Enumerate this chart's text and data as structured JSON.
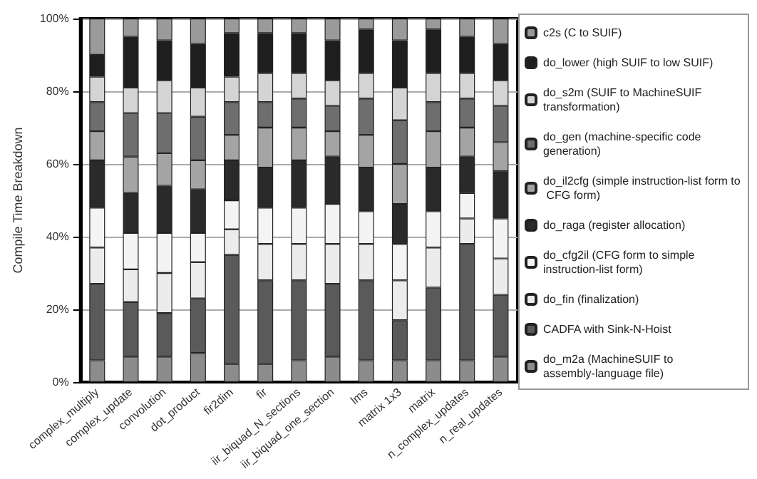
{
  "chart_data": {
    "type": "bar",
    "stacked": true,
    "ylabel": "Compile Time Breakdown",
    "categories": [
      "complex_multiply",
      "complex_update",
      "convolution",
      "dot_product",
      "fir2dim",
      "fir",
      "iir_biquad_N_sections",
      "iir_biquad_one_section",
      "lms",
      "matrix 1x3",
      "matrix",
      "n_complex_updates",
      "n_real_updates"
    ],
    "series": [
      {
        "name": "do_m2a (MachineSUIF to assembly-language file)",
        "color": "#8c8c8c",
        "values": [
          6,
          7,
          7,
          8,
          5,
          5,
          6,
          7,
          6,
          6,
          6,
          6,
          7
        ]
      },
      {
        "name": "CADFA with Sink-N-Hoist",
        "color": "#5a5a5a",
        "values": [
          21,
          15,
          12,
          15,
          30,
          23,
          22,
          20,
          22,
          11,
          20,
          32,
          17
        ]
      },
      {
        "name": "do_fin (finalization)",
        "color": "#ececec",
        "values": [
          10,
          9,
          11,
          10,
          7,
          10,
          10,
          11,
          10,
          11,
          11,
          7,
          10
        ]
      },
      {
        "name": "do_cfg2il (CFG form to simple instruction-list form)",
        "color": "#f4f4f4",
        "values": [
          11,
          10,
          11,
          8,
          8,
          10,
          10,
          11,
          9,
          10,
          10,
          7,
          11
        ]
      },
      {
        "name": "do_raga (register allocation)",
        "color": "#2a2a2a",
        "values": [
          13,
          11,
          13,
          12,
          11,
          11,
          13,
          13,
          12,
          11,
          12,
          10,
          13
        ]
      },
      {
        "name": "do_il2cfg (simple instruction-list form to CFG form)",
        "color": "#a4a4a4",
        "values": [
          8,
          10,
          9,
          8,
          7,
          11,
          9,
          7,
          9,
          11,
          10,
          8,
          8
        ]
      },
      {
        "name": "do_gen (machine-specific code generation)",
        "color": "#6e6e6e",
        "values": [
          8,
          12,
          11,
          12,
          9,
          7,
          8,
          7,
          10,
          12,
          8,
          8,
          10
        ]
      },
      {
        "name": "do_s2m (SUIF to MachineSUIF transformation)",
        "color": "#d4d4d4",
        "values": [
          7,
          7,
          9,
          8,
          7,
          8,
          7,
          7,
          7,
          9,
          8,
          7,
          7
        ]
      },
      {
        "name": "do_lower (high SUIF to low SUIF)",
        "color": "#1e1e1e",
        "values": [
          6,
          14,
          11,
          12,
          12,
          11,
          11,
          11,
          12,
          13,
          12,
          10,
          10
        ]
      },
      {
        "name": "c2s (C to SUIF)",
        "color": "#9a9a9a",
        "values": [
          10,
          5,
          6,
          7,
          4,
          4,
          4,
          6,
          3,
          6,
          3,
          5,
          7
        ]
      }
    ],
    "ylim": [
      0,
      100
    ],
    "yticks": [
      {
        "value": 0,
        "label": "0%"
      },
      {
        "value": 20,
        "label": "20%"
      },
      {
        "value": 40,
        "label": "40%"
      },
      {
        "value": 60,
        "label": "60%"
      },
      {
        "value": 80,
        "label": "80%"
      },
      {
        "value": 100,
        "label": "100%"
      }
    ],
    "grid": "y",
    "legend": "right"
  }
}
